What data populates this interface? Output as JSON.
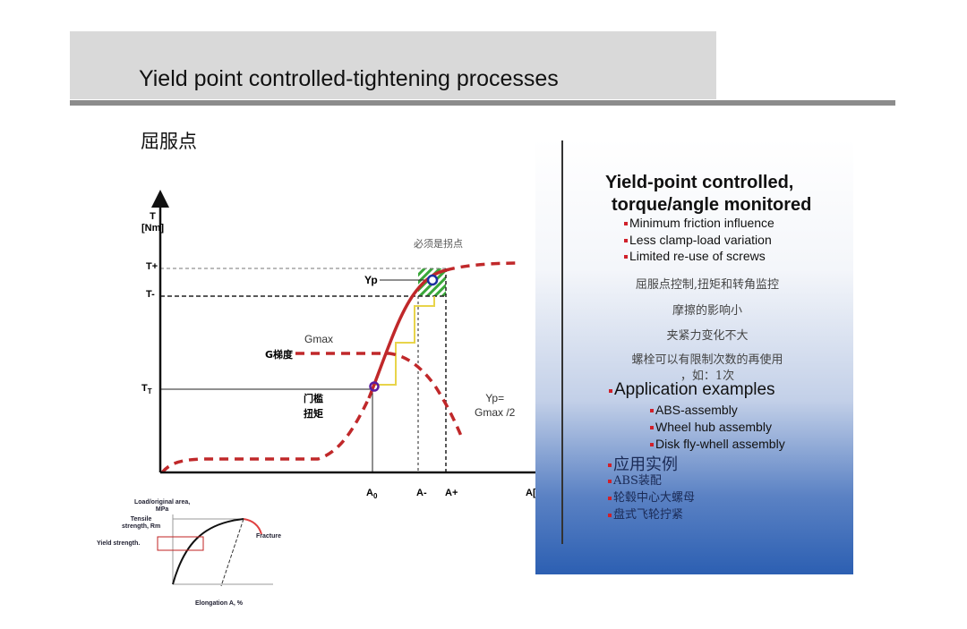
{
  "header": {
    "title": "Yield point  controlled-tightening processes"
  },
  "subtitle": "屈服点",
  "diagram": {
    "y_label_line1": "T",
    "y_label_line2": "[Nm]",
    "t_plus": "T+",
    "t_minus": "T-",
    "t_t": "T",
    "t_t_sub": "T",
    "a0": "A",
    "a0_sub": "0",
    "a_minus": "A-",
    "a_plus": "A+",
    "a_axis": "A[°]",
    "yp": "Yp",
    "inflection_note": "必须是拐点",
    "gmax": "Gmax",
    "gradient": "G梯度",
    "threshold_1": "门槛",
    "threshold_2": "扭矩",
    "yp_eq_1": "Yp=",
    "yp_eq_2": "Gmax /2",
    "colors": {
      "curve": "#c0282a",
      "window": "#3aa83a",
      "steps": "#e8d44a",
      "marker": "#1c2fa0"
    }
  },
  "inset": {
    "ylabel_1": "Load/original area,",
    "ylabel_2": "MPa",
    "tensile_1": "Tensile",
    "tensile_2": "strength, Rm",
    "yield": "Yield strength.",
    "fracture": "Fracture",
    "xlabel": "Elongation A, %"
  },
  "panel": {
    "heading_1": "Yield-point controlled,",
    "heading_2": "torque/angle monitored",
    "bullets": [
      "Minimum friction influence",
      "Less clamp-load variation",
      "Limited re-use of screws"
    ],
    "cn_lines": [
      "屈服点控制,扭矩和转角监控",
      "摩擦的影响小",
      "夹紧力变化不大",
      "螺栓可以有限制次数的再使用",
      "，如：1次"
    ],
    "app_heading": "Application examples",
    "apps": [
      "ABS-assembly",
      "Wheel hub assembly",
      "Disk fly-whell assembly"
    ],
    "app_cn_heading": "应用实例",
    "apps_cn": [
      "ABS装配",
      "轮毂中心大螺母",
      "盘式飞轮拧紧"
    ],
    "colors": {
      "bullet": "#d0202a",
      "gradient_bottom": "#2c5fb2"
    }
  }
}
